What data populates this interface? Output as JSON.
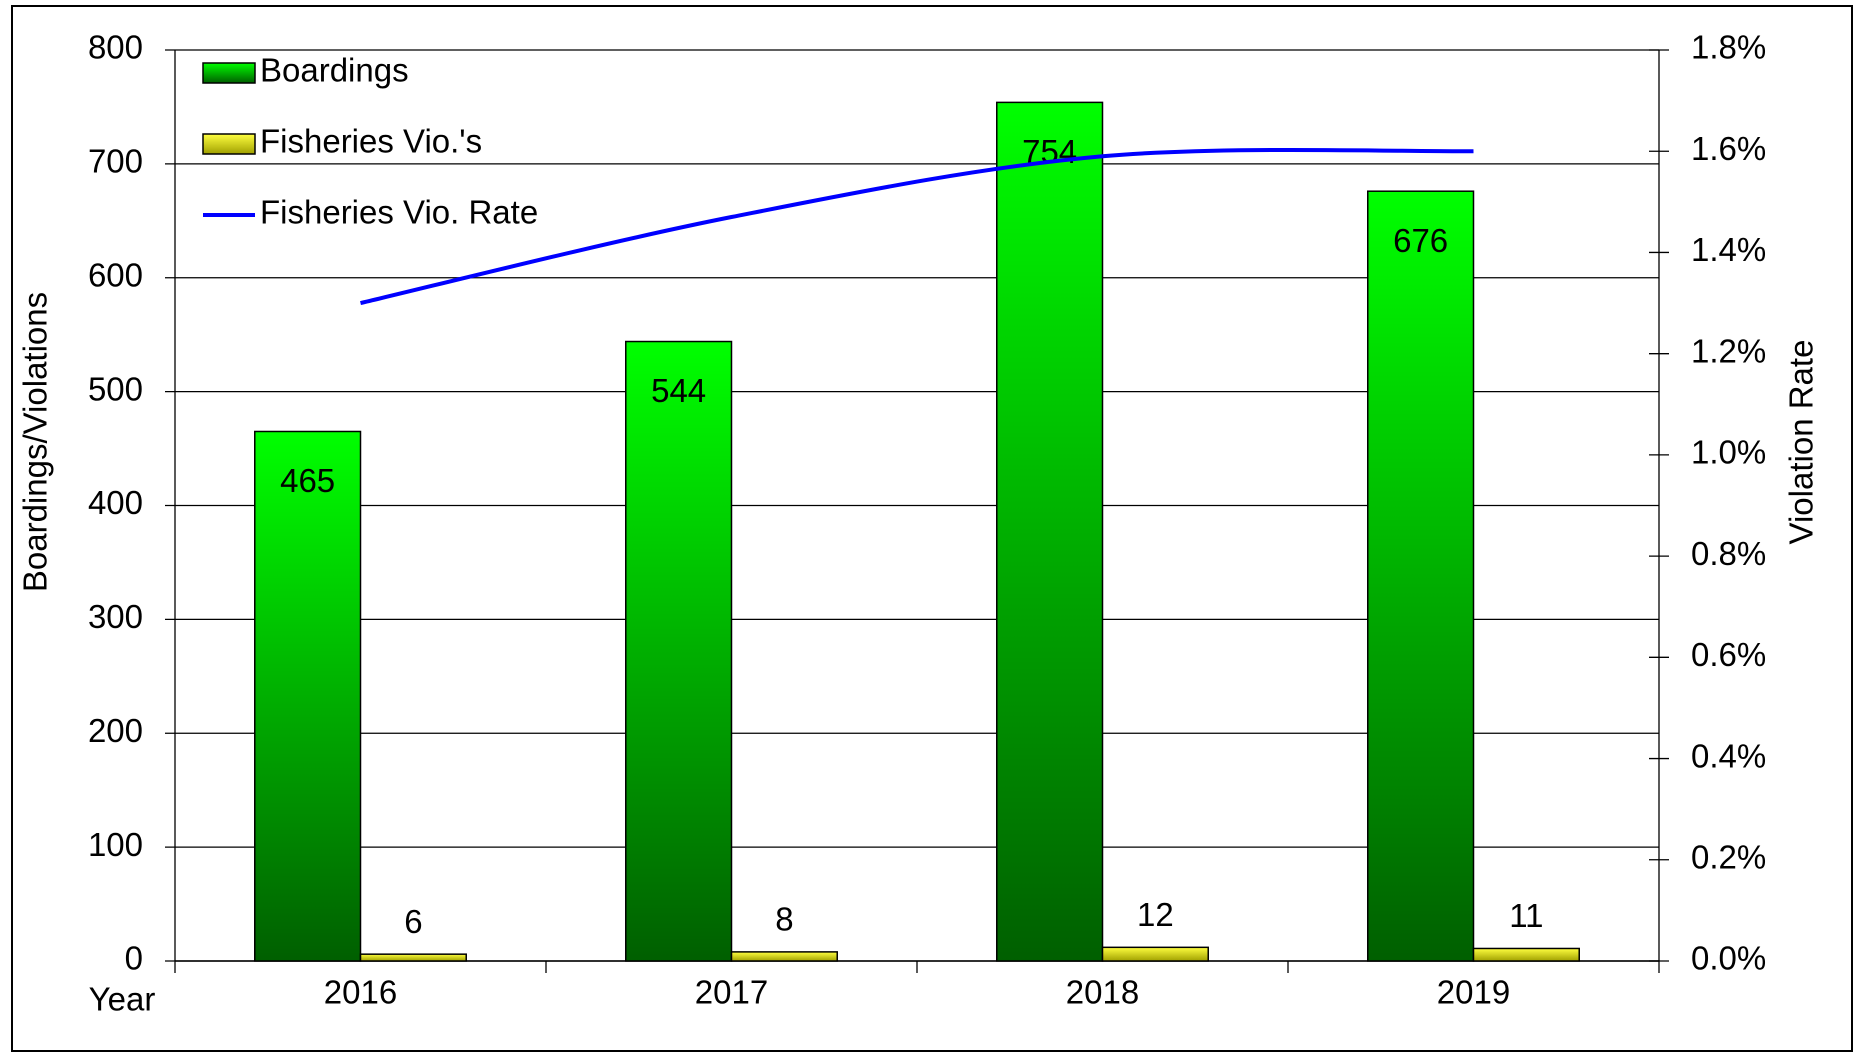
{
  "chart_data": {
    "type": "bar",
    "categories": [
      "2016",
      "2017",
      "2018",
      "2019"
    ],
    "xlabel": "Year",
    "ylabel": "Boardings/Violations",
    "y2label": "Violation Rate",
    "series": [
      {
        "name": "Boardings",
        "color": "#00e000",
        "values": [
          465,
          544,
          754,
          676
        ]
      },
      {
        "name": "Fisheries Vio.'s",
        "color": "#e0e000",
        "values": [
          6,
          8,
          12,
          11
        ]
      },
      {
        "name": "Fisheries Vio. Rate",
        "color": "#0000ff",
        "type": "line",
        "axis": "y2",
        "values": [
          1.3,
          1.47,
          1.59,
          1.6
        ]
      }
    ],
    "ylim": [
      0,
      800
    ],
    "yticks": [
      0,
      100,
      200,
      300,
      400,
      500,
      600,
      700,
      800
    ],
    "y2lim": [
      0,
      1.8
    ],
    "y2ticks": [
      {
        "value": 0,
        "label": "0.0%"
      },
      {
        "value": 0.2,
        "label": "0.2%"
      },
      {
        "value": 0.4,
        "label": "0.4%"
      },
      {
        "value": 0.6,
        "label": "0.6%"
      },
      {
        "value": 0.8,
        "label": "0.8%"
      },
      {
        "value": 1.0,
        "label": "1.0%"
      },
      {
        "value": 1.2,
        "label": "1.2%"
      },
      {
        "value": 1.4,
        "label": "1.4%"
      },
      {
        "value": 1.6,
        "label": "1.6%"
      },
      {
        "value": 1.8,
        "label": "1.8%"
      }
    ],
    "grid": true,
    "legend": "top-left"
  }
}
